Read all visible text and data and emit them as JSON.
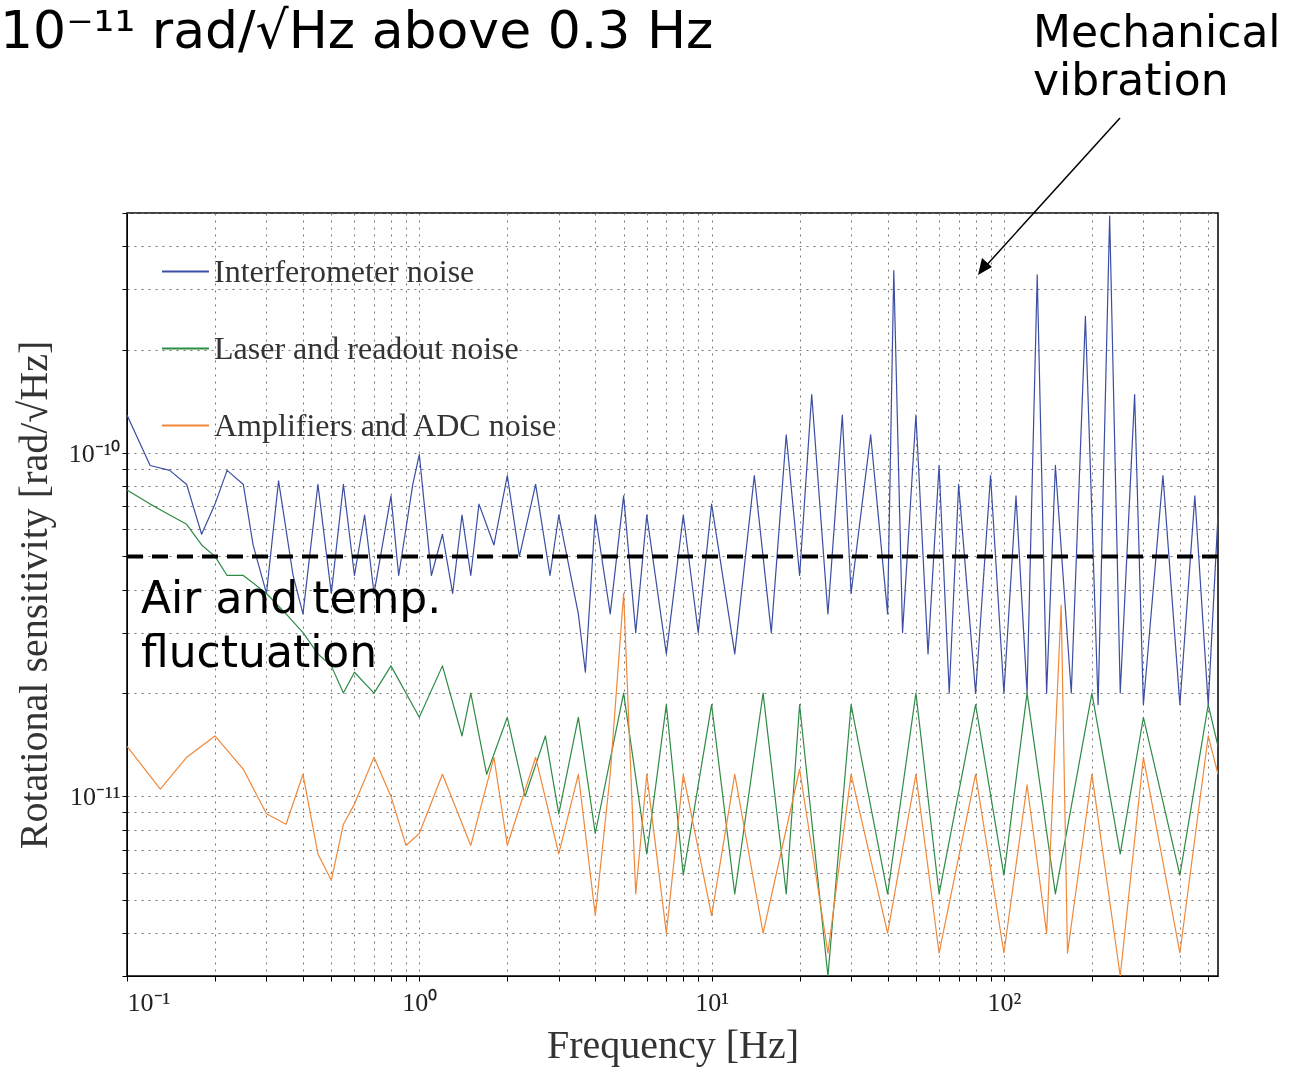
{
  "chart_data": {
    "type": "line",
    "title": "10⁻¹¹ rad/√Hz above 0.3 Hz",
    "xlabel": "Frequency [Hz]",
    "ylabel": "Rotational sensitivity [rad/√Hz]",
    "annotations": [
      "Mechanical\nvibration"
    ],
    "log": "xy",
    "grid": true,
    "legend": "top left",
    "xlim": [
      0.1,
      540
    ],
    "ylim": [
      3e-12,
      5e-10
    ],
    "xticks": [
      {
        "value": 0.1,
        "label": "10⁻¹"
      },
      {
        "value": 0.2,
        "label": null
      },
      {
        "value": 0.3,
        "label": null
      },
      {
        "value": 0.4,
        "label": null
      },
      {
        "value": 0.5,
        "label": null
      },
      {
        "value": 0.6,
        "label": null
      },
      {
        "value": 0.7,
        "label": null
      },
      {
        "value": 0.8,
        "label": null
      },
      {
        "value": 0.9,
        "label": null
      },
      {
        "value": 1,
        "label": "10⁰"
      },
      {
        "value": 2,
        "label": null
      },
      {
        "value": 3,
        "label": null
      },
      {
        "value": 4,
        "label": null
      },
      {
        "value": 5,
        "label": null
      },
      {
        "value": 6,
        "label": null
      },
      {
        "value": 7,
        "label": null
      },
      {
        "value": 8,
        "label": null
      },
      {
        "value": 9,
        "label": null
      },
      {
        "value": 10,
        "label": "10¹"
      },
      {
        "value": 20,
        "label": null
      },
      {
        "value": 30,
        "label": null
      },
      {
        "value": 40,
        "label": null
      },
      {
        "value": 50,
        "label": null
      },
      {
        "value": 60,
        "label": null
      },
      {
        "value": 70,
        "label": null
      },
      {
        "value": 80,
        "label": null
      },
      {
        "value": 90,
        "label": null
      },
      {
        "value": 100,
        "label": "10²"
      },
      {
        "value": 200,
        "label": null
      },
      {
        "value": 300,
        "label": null
      },
      {
        "value": 400,
        "label": null
      },
      {
        "value": 500,
        "label": null
      }
    ],
    "yticks": [
      {
        "value": 3e-12,
        "label": null
      },
      {
        "value": 4e-12,
        "label": null
      },
      {
        "value": 5e-12,
        "label": null
      },
      {
        "value": 6e-12,
        "label": null
      },
      {
        "value": 7e-12,
        "label": null
      },
      {
        "value": 8e-12,
        "label": null
      },
      {
        "value": 9e-12,
        "label": null
      },
      {
        "value": 1e-11,
        "label": "10⁻¹¹"
      },
      {
        "value": 2e-11,
        "label": null
      },
      {
        "value": 3e-11,
        "label": null
      },
      {
        "value": 4e-11,
        "label": null
      },
      {
        "value": 5e-11,
        "label": null
      },
      {
        "value": 6e-11,
        "label": null
      },
      {
        "value": 7e-11,
        "label": null
      },
      {
        "value": 8e-11,
        "label": null
      },
      {
        "value": 9e-11,
        "label": null
      },
      {
        "value": 1e-10,
        "label": "10⁻¹⁰"
      },
      {
        "value": 2e-10,
        "label": null
      },
      {
        "value": 3e-10,
        "label": null
      },
      {
        "value": 4e-10,
        "label": null
      },
      {
        "value": 5e-10,
        "label": null
      }
    ],
    "ref_lines": [
      {
        "axis": "y",
        "value": 5e-11,
        "label": "Air and temp.\nfluctuation",
        "color": "#000000",
        "line_style": "dashed"
      }
    ],
    "series": [
      {
        "name": "Interferometer noise",
        "color": "#3b4ea3",
        "x": [
          0.1,
          0.12,
          0.14,
          0.16,
          0.18,
          0.2,
          0.22,
          0.25,
          0.27,
          0.3,
          0.33,
          0.37,
          0.4,
          0.45,
          0.5,
          0.55,
          0.6,
          0.65,
          0.7,
          0.8,
          0.85,
          0.95,
          1,
          1.1,
          1.2,
          1.3,
          1.4,
          1.5,
          1.6,
          1.8,
          2,
          2.2,
          2.5,
          2.8,
          3,
          3.5,
          3.7,
          4,
          4.5,
          5,
          5.5,
          6,
          7,
          8,
          9,
          10,
          12,
          14,
          16,
          18,
          20,
          22,
          25,
          28,
          30,
          35,
          40,
          42,
          45,
          50,
          55,
          60,
          65,
          70,
          80,
          90,
          100,
          110,
          120,
          130,
          140,
          150,
          170,
          190,
          210,
          230,
          250,
          280,
          300,
          350,
          400,
          450,
          500,
          540
        ],
        "values": [
          1.29e-10,
          9.2e-11,
          8.9e-11,
          8.1e-11,
          5.8e-11,
          7.1e-11,
          8.9e-11,
          8.1e-11,
          5.4e-11,
          3.9e-11,
          8.3e-11,
          4.4e-11,
          3.4e-11,
          8.1e-11,
          3.9e-11,
          8.1e-11,
          4.4e-11,
          6.6e-11,
          3.9e-11,
          7.5e-11,
          4.4e-11,
          8.1e-11,
          9.9e-11,
          4.4e-11,
          5.8e-11,
          3.9e-11,
          6.6e-11,
          4.4e-11,
          7.1e-11,
          5.4e-11,
          8.6e-11,
          5e-11,
          8.1e-11,
          4.4e-11,
          6.6e-11,
          3.4e-11,
          2.3e-11,
          6.6e-11,
          3.4e-11,
          7.5e-11,
          3e-11,
          6.6e-11,
          2.6e-11,
          6.6e-11,
          3e-11,
          7.1e-11,
          2.6e-11,
          8.6e-11,
          3e-11,
          1.13e-10,
          4.4e-11,
          1.48e-10,
          3.4e-11,
          1.29e-10,
          3.9e-11,
          1.13e-10,
          3.4e-11,
          3.4e-10,
          3e-11,
          1.29e-10,
          2.6e-11,
          9.2e-11,
          2e-11,
          8.1e-11,
          2e-11,
          8.6e-11,
          2e-11,
          7.5e-11,
          2e-11,
          3.3e-10,
          2e-11,
          9.2e-11,
          2e-11,
          2.5e-10,
          1.85e-11,
          4.9e-10,
          2e-11,
          1.48e-10,
          1.85e-11,
          8.6e-11,
          1.85e-11,
          7.5e-11,
          1.85e-11,
          6.6e-11
        ]
      },
      {
        "name": "Laser and readout noise",
        "color": "#2e8b45",
        "x": [
          0.1,
          0.12,
          0.14,
          0.16,
          0.18,
          0.2,
          0.22,
          0.25,
          0.3,
          0.35,
          0.4,
          0.45,
          0.5,
          0.55,
          0.6,
          0.7,
          0.8,
          1,
          1.2,
          1.4,
          1.5,
          1.7,
          2,
          2.3,
          2.7,
          3,
          3.5,
          4,
          5,
          6,
          7,
          8,
          10,
          12,
          15,
          18,
          20,
          25,
          30,
          40,
          50,
          60,
          80,
          100,
          120,
          150,
          200,
          250,
          300,
          400,
          500,
          540
        ],
        "values": [
          7.8e-11,
          7.1e-11,
          6.6e-11,
          6.2e-11,
          5.4e-11,
          5e-11,
          4.4e-11,
          4.4e-11,
          3.9e-11,
          3.4e-11,
          3e-11,
          2.6e-11,
          2.4e-11,
          2e-11,
          2.3e-11,
          2e-11,
          2.4e-11,
          1.7e-11,
          2.4e-11,
          1.5e-11,
          2e-11,
          1.16e-11,
          1.7e-11,
          1e-11,
          1.5e-11,
          8.9e-12,
          1.7e-11,
          7.8e-12,
          2e-11,
          6.8e-12,
          1.85e-11,
          5.9e-12,
          1.85e-11,
          5.2e-12,
          2e-11,
          5.2e-12,
          1.85e-11,
          3e-12,
          1.85e-11,
          5.2e-12,
          2e-11,
          5.2e-12,
          1.85e-11,
          5.9e-12,
          2e-11,
          5.2e-12,
          2e-11,
          6.8e-12,
          1.7e-11,
          5.9e-12,
          1.85e-11,
          1.4e-11
        ]
      },
      {
        "name": "Amplifiers and ADC noise",
        "color": "#f0883a",
        "x": [
          0.1,
          0.13,
          0.16,
          0.2,
          0.25,
          0.3,
          0.35,
          0.4,
          0.45,
          0.5,
          0.55,
          0.6,
          0.7,
          0.8,
          0.9,
          1,
          1.2,
          1.5,
          1.8,
          2,
          2.5,
          3,
          3.5,
          4,
          4.5,
          5,
          5.5,
          6,
          7,
          8,
          10,
          12,
          15,
          20,
          25,
          30,
          40,
          50,
          60,
          80,
          100,
          120,
          140,
          157,
          165,
          200,
          250,
          300,
          400,
          500,
          540
        ],
        "values": [
          1.4e-11,
          1.05e-11,
          1.3e-11,
          1.5e-11,
          1.2e-11,
          8.9e-12,
          8.3e-12,
          1.16e-11,
          6.8e-12,
          5.7e-12,
          8.3e-12,
          9.5e-12,
          1.3e-11,
          1e-11,
          7.2e-12,
          7.8e-12,
          1.16e-11,
          7.2e-12,
          1.3e-11,
          7.2e-12,
          1.3e-11,
          6.8e-12,
          1.16e-11,
          4.5e-12,
          1.16e-11,
          3.9e-11,
          5.2e-12,
          1.16e-11,
          4e-12,
          1.16e-11,
          4.5e-12,
          1.16e-11,
          4e-12,
          1.2e-11,
          3.5e-12,
          1.16e-11,
          4e-12,
          1.16e-11,
          3.5e-12,
          1.16e-11,
          3.5e-12,
          1.08e-11,
          4e-12,
          3.6e-11,
          3.5e-12,
          1.16e-11,
          3e-12,
          1.3e-11,
          3.5e-12,
          1.5e-11,
          1.16e-11
        ]
      }
    ]
  }
}
